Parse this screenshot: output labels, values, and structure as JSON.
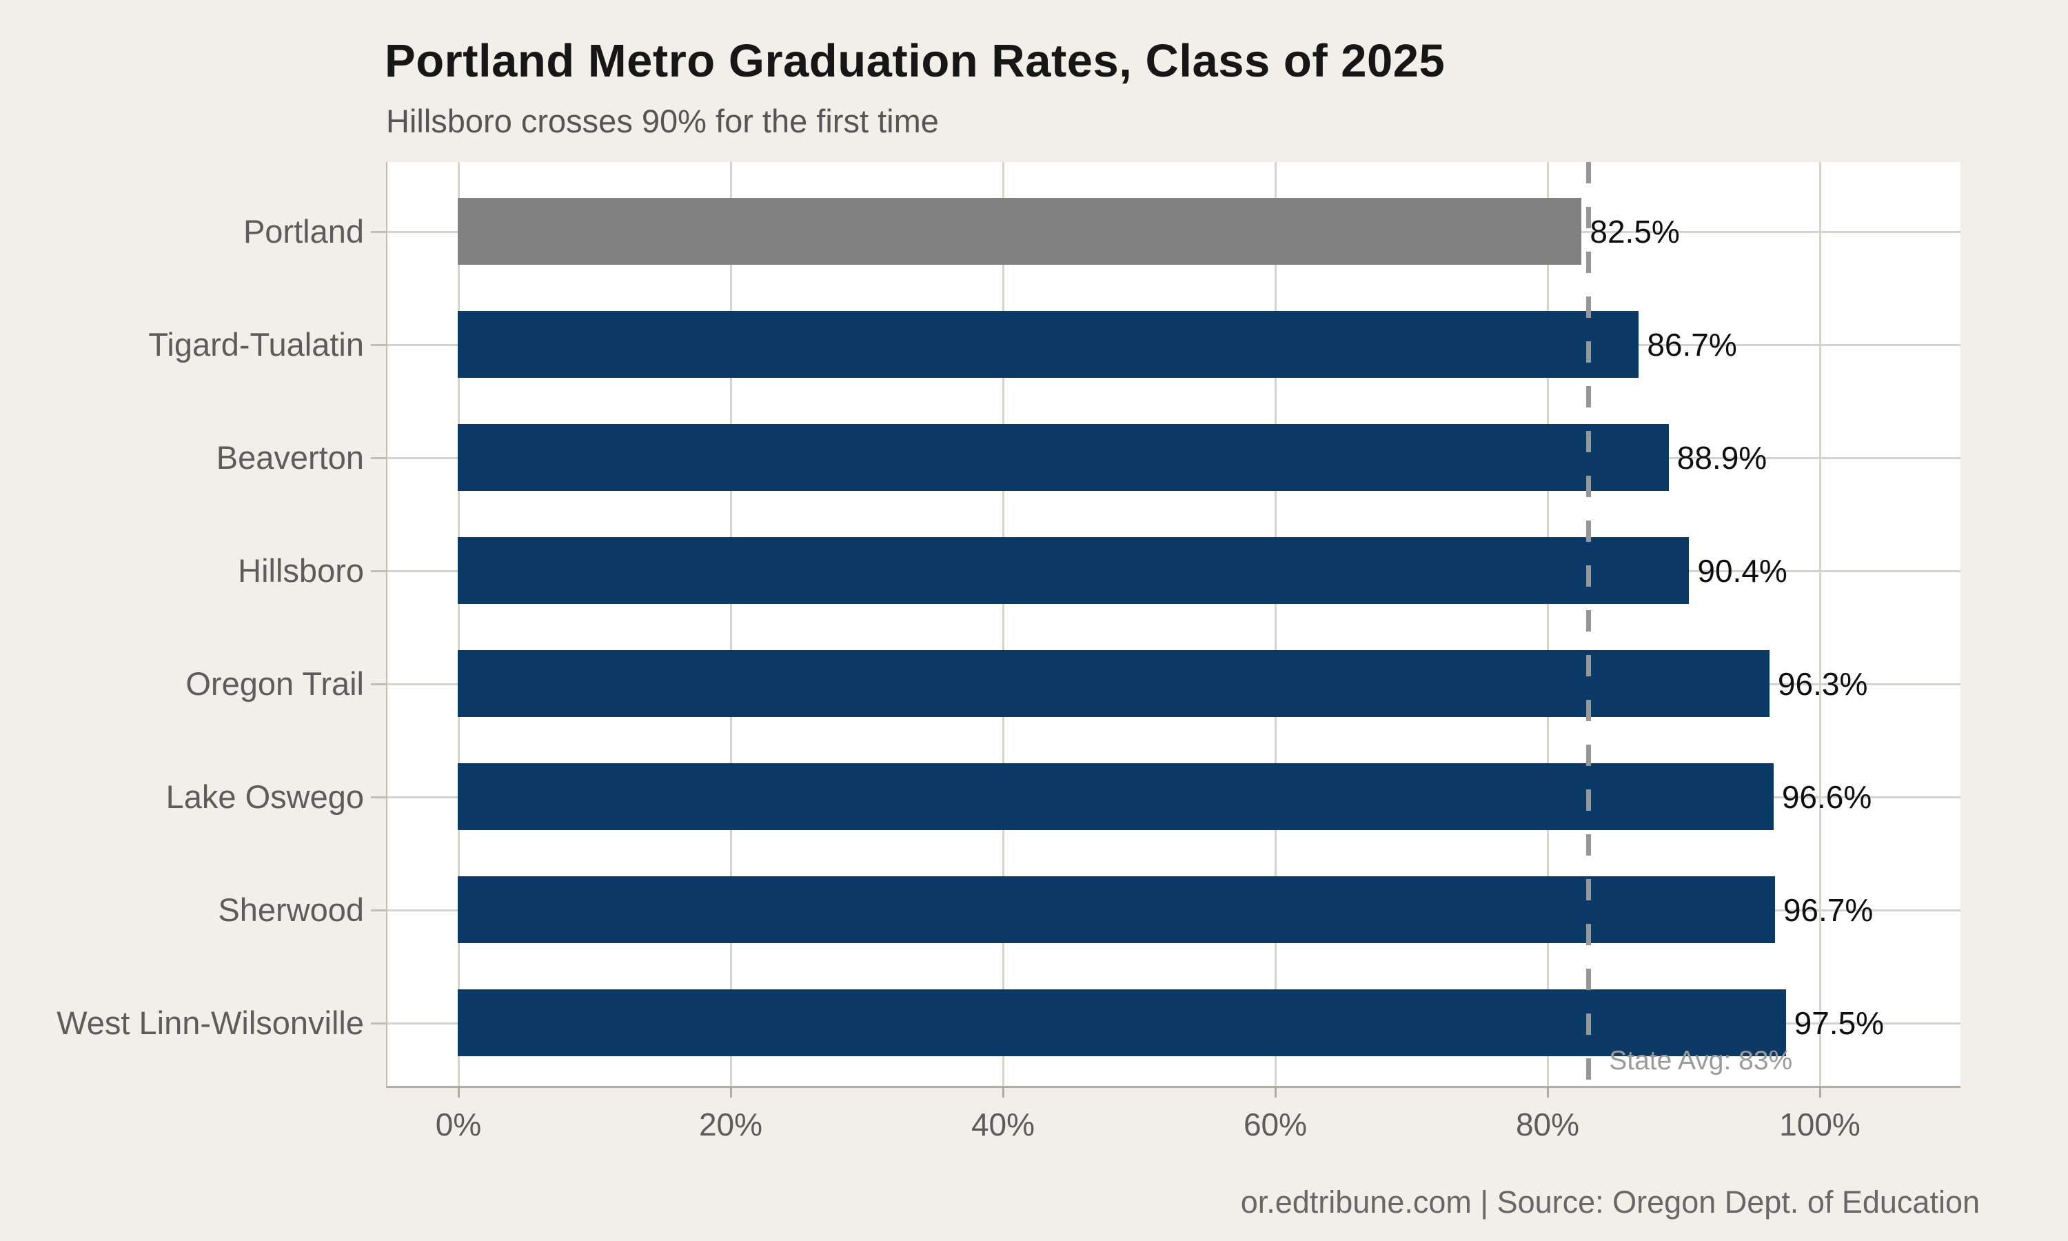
{
  "chart_data": {
    "type": "bar",
    "orientation": "horizontal",
    "title": "Portland Metro Graduation Rates, Class of 2025",
    "subtitle": "Hillsboro crosses 90% for the first time",
    "footer": "or.edtribune.com | Source: Oregon Dept. of Education",
    "categories": [
      "Portland",
      "Tigard-Tualatin",
      "Beaverton",
      "Hillsboro",
      "Oregon Trail",
      "Lake Oswego",
      "Sherwood",
      "West Linn-Wilsonville"
    ],
    "values": [
      82.5,
      86.7,
      88.9,
      90.4,
      96.3,
      96.6,
      96.7,
      97.5
    ],
    "value_labels": [
      "82.5%",
      "86.7%",
      "88.9%",
      "90.4%",
      "96.3%",
      "96.6%",
      "96.7%",
      "97.5%"
    ],
    "bar_colors": [
      "#818181",
      "#0b3a67",
      "#0b3a67",
      "#0b3a67",
      "#0b3a67",
      "#0b3a67",
      "#0b3a67",
      "#0b3a67"
    ],
    "x_ticks": [
      0,
      20,
      40,
      60,
      80,
      100
    ],
    "x_tick_labels": [
      "0%",
      "20%",
      "40%",
      "60%",
      "80%",
      "100%"
    ],
    "xlim": [
      -5.2,
      110.5
    ],
    "grid": true,
    "legend": false,
    "reference_line": {
      "value": 83,
      "label": "State Avg: 83%"
    },
    "highlighted_category": "Portland",
    "colors": {
      "bar": "#0b3a67",
      "highlight_bar": "#818181",
      "background": "#f2efe9",
      "plot_background": "#ffffff",
      "gridline": "#d8d3c8",
      "left_spine": "#c4beb2",
      "bottom_spine": "#b2ab9e",
      "reference_line": "#979797",
      "reference_label": "#9b9b9b",
      "title": "#161616",
      "subtitle": "#555555",
      "axis_text": "#5c5c5c",
      "value_label": "#0e0e0e",
      "footer": "#676767"
    }
  }
}
